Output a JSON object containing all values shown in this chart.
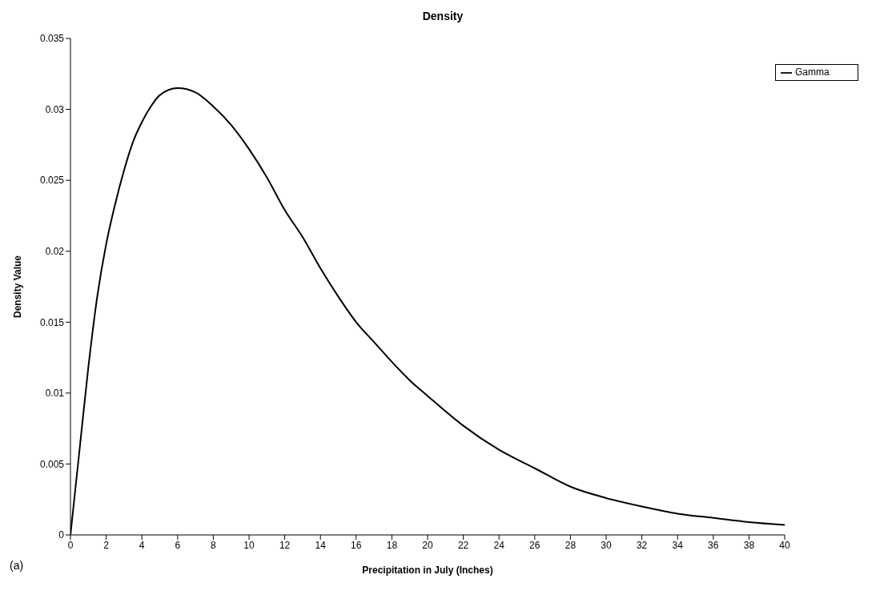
{
  "chart_data": {
    "type": "line",
    "title": "Density",
    "xlabel": "Precipitation in July (Inches)",
    "ylabel": "Density Value",
    "x": [
      0,
      0.5,
      1,
      1.5,
      2,
      2.5,
      3,
      3.5,
      4,
      4.5,
      5,
      6,
      7,
      8,
      9,
      10,
      11,
      12,
      13,
      14,
      15,
      16,
      17,
      18,
      19,
      20,
      22,
      24,
      26,
      28,
      30,
      32,
      34,
      36,
      38,
      40
    ],
    "series": [
      {
        "name": "Gamma",
        "color": "#000000",
        "values": [
          0,
          0.0059,
          0.0118,
          0.0168,
          0.0205,
          0.0233,
          0.0257,
          0.0277,
          0.0291,
          0.0302,
          0.031,
          0.0315,
          0.0312,
          0.0302,
          0.0289,
          0.0272,
          0.0252,
          0.0229,
          0.021,
          0.0188,
          0.0168,
          0.015,
          0.0136,
          0.0122,
          0.0109,
          0.0098,
          0.0077,
          0.006,
          0.0047,
          0.0034,
          0.0026,
          0.002,
          0.0015,
          0.0012,
          0.0009,
          0.0007
        ]
      }
    ],
    "xlim": [
      0,
      40
    ],
    "xticks": [
      0,
      2,
      4,
      6,
      8,
      10,
      12,
      14,
      16,
      18,
      20,
      22,
      24,
      26,
      28,
      30,
      32,
      34,
      36,
      38,
      40
    ],
    "ylim": [
      0,
      0.035
    ],
    "yticks": [
      0,
      0.005,
      0.01,
      0.015,
      0.02,
      0.025,
      0.03,
      0.035
    ],
    "legend": "top right",
    "marker": "none",
    "line_style": "solid",
    "annotations": [
      "(a)"
    ]
  }
}
